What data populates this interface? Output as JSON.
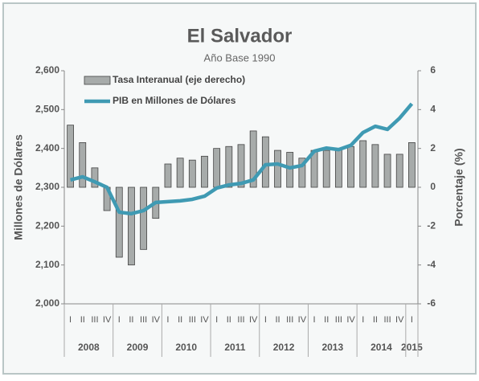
{
  "chart_data": {
    "type": "bar-line",
    "title": "El Salvador",
    "subtitle": "Año Base 1990",
    "ylabel": "Millones de Dólares",
    "y2label": "Porcentaje (%)",
    "categories": [
      "I",
      "II",
      "III",
      "IV",
      "I",
      "II",
      "III",
      "IV",
      "I",
      "II",
      "III",
      "IV",
      "I",
      "II",
      "III",
      "IV",
      "I",
      "II",
      "III",
      "IV",
      "I",
      "II",
      "III",
      "IV",
      "I",
      "II",
      "III",
      "IV",
      "I"
    ],
    "years": [
      "2008",
      "2009",
      "2010",
      "2011",
      "2012",
      "2013",
      "2014",
      "2015"
    ],
    "series": [
      {
        "name": "Tasa Interanual (eje derecho)",
        "type": "bar",
        "axis": "y2",
        "color": "#a7abaa",
        "values": [
          3.2,
          2.3,
          1.0,
          -1.2,
          -3.6,
          -4.0,
          -3.2,
          -1.6,
          1.2,
          1.5,
          1.4,
          1.6,
          2.0,
          2.1,
          2.2,
          2.9,
          2.6,
          1.9,
          1.8,
          1.5,
          1.9,
          1.9,
          2.0,
          2.1,
          2.4,
          2.2,
          1.7,
          1.7,
          2.3
        ]
      },
      {
        "name": "PIB en Millones de Dólares",
        "type": "line",
        "axis": "y",
        "color": "#3f9ab3",
        "values": [
          2319,
          2327,
          2314,
          2300,
          2236,
          2232,
          2240,
          2261,
          2263,
          2265,
          2269,
          2277,
          2298,
          2306,
          2310,
          2319,
          2358,
          2360,
          2350,
          2356,
          2393,
          2401,
          2397,
          2408,
          2441,
          2457,
          2449,
          2478,
          2515
        ]
      }
    ],
    "ylim": [
      2000,
      2600
    ],
    "yticks": [
      {
        "value": 2000,
        "label": "2,000"
      },
      {
        "value": 2100,
        "label": "2,100"
      },
      {
        "value": 2200,
        "label": "2,200"
      },
      {
        "value": 2300,
        "label": "2,300"
      },
      {
        "value": 2400,
        "label": "2,400"
      },
      {
        "value": 2500,
        "label": "2,500"
      },
      {
        "value": 2600,
        "label": "2,600"
      }
    ],
    "y2lim": [
      -6,
      6
    ],
    "y2ticks": [
      -6,
      -4,
      -2,
      0,
      2,
      4,
      6
    ]
  }
}
